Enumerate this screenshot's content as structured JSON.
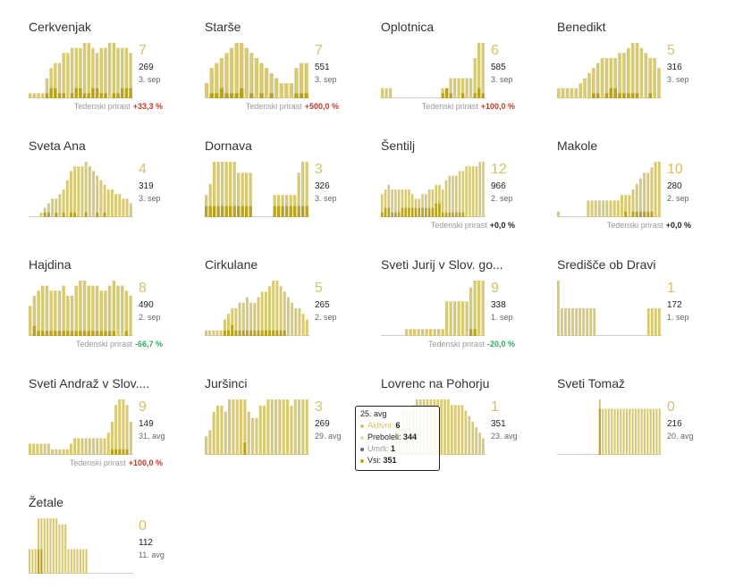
{
  "colors": {
    "active": "#d4c168",
    "base": "#d8ca74",
    "dark": "#b9a21f",
    "grey": "#cfcfcf",
    "positive_change": "#c0392b",
    "negative_change": "#27ae60"
  },
  "growth_label": "Tedenski prirast",
  "chart_data": [
    {
      "type": "bar",
      "title": "Cerkvenjak",
      "active": "7",
      "total": "269",
      "date": "3. sep",
      "growth": "+33,3 %",
      "growth_sign": "up",
      "values": [
        1,
        1,
        1,
        1,
        4,
        6,
        7,
        7,
        9,
        9,
        10,
        10,
        10,
        11,
        11,
        10,
        9,
        10,
        10,
        11,
        11,
        10,
        10,
        10,
        9
      ],
      "dark": [
        0,
        0,
        0,
        0,
        1,
        2,
        2,
        1,
        1,
        0,
        1,
        2,
        2,
        1,
        1,
        2,
        2,
        1,
        1,
        0,
        1,
        1,
        2,
        2,
        2
      ]
    },
    {
      "type": "bar",
      "title": "Starše",
      "active": "7",
      "total": "551",
      "date": "3. sep",
      "growth": "+500,0 %",
      "growth_sign": "up",
      "values": [
        3,
        6,
        7,
        8,
        9,
        10,
        11,
        11,
        10,
        9,
        8,
        7,
        6,
        5,
        4,
        3,
        3,
        3,
        6,
        7,
        7
      ],
      "dark": [
        0,
        1,
        1,
        2,
        1,
        1,
        1,
        2,
        0,
        1,
        0,
        1,
        0,
        1,
        0,
        0,
        0,
        0,
        1,
        1,
        1
      ]
    },
    {
      "type": "bar",
      "title": "Oplotnica",
      "active": "6",
      "total": "585",
      "date": "3. sep",
      "growth": "+100,0 %",
      "growth_sign": "up",
      "values": [
        2,
        2,
        2,
        0,
        0,
        0,
        0,
        0,
        0,
        0,
        0,
        0,
        0,
        0,
        0,
        2,
        2,
        4,
        4,
        4,
        4,
        4,
        4,
        8,
        11,
        11
      ],
      "dark": [
        0,
        0,
        0,
        0,
        0,
        0,
        0,
        0,
        0,
        0,
        0,
        0,
        0,
        0,
        0,
        1,
        2,
        1,
        0,
        0,
        1,
        0,
        0,
        1,
        2,
        1
      ]
    },
    {
      "type": "bar",
      "title": "Benedikt",
      "active": "5",
      "total": "316",
      "date": "3. sep",
      "growth": "",
      "growth_sign": "none",
      "values": [
        2,
        2,
        2,
        2,
        2,
        3,
        4,
        5,
        6,
        7,
        8,
        8,
        8,
        8,
        9,
        9,
        10,
        11,
        11,
        10,
        9,
        8,
        8,
        6
      ],
      "dark": [
        0,
        0,
        0,
        0,
        0,
        0,
        0,
        0,
        1,
        1,
        0,
        1,
        2,
        2,
        1,
        1,
        1,
        1,
        1,
        0,
        0,
        1,
        0,
        0
      ]
    },
    {
      "type": "bar",
      "title": "Sveta Ana",
      "active": "4",
      "total": "319",
      "date": "3. sep",
      "growth": "",
      "growth_sign": "none",
      "values": [
        0,
        0,
        0,
        1,
        2,
        3,
        4,
        4,
        5,
        6,
        8,
        10,
        11,
        11,
        11,
        12,
        11,
        10,
        9,
        8,
        7,
        6,
        6,
        5,
        5,
        4,
        4,
        3
      ],
      "dark": [
        0,
        0,
        0,
        0,
        1,
        1,
        0,
        1,
        0,
        1,
        0,
        1,
        1,
        0,
        0,
        1,
        0,
        0,
        1,
        0,
        1,
        0,
        0,
        0,
        0,
        0,
        0,
        0
      ]
    },
    {
      "type": "bar",
      "title": "Dornava",
      "active": "3",
      "total": "326",
      "date": "3. sep",
      "growth": "",
      "growth_sign": "none",
      "values": [
        4,
        6,
        10,
        10,
        10,
        10,
        10,
        10,
        8,
        8,
        8,
        8,
        0,
        0,
        0,
        0,
        0,
        4,
        4,
        4,
        4,
        4,
        4,
        8,
        10,
        10
      ],
      "dark": [
        2,
        2,
        2,
        2,
        2,
        2,
        2,
        2,
        2,
        2,
        2,
        2,
        0,
        0,
        0,
        0,
        0,
        2,
        2,
        2,
        2,
        2,
        2,
        2,
        2,
        2
      ]
    },
    {
      "type": "bar",
      "title": "Šentilj",
      "active": "12",
      "total": "966",
      "date": "2. sep",
      "growth": "+0,0 %",
      "growth_sign": "zero",
      "values": [
        5,
        6,
        7,
        6,
        6,
        6,
        6,
        6,
        6,
        5,
        4,
        4,
        5,
        5,
        6,
        6,
        7,
        7,
        6,
        8,
        9,
        9,
        9,
        10,
        10,
        11,
        11,
        11,
        11,
        12,
        12
      ],
      "dark": [
        1,
        2,
        2,
        1,
        1,
        1,
        2,
        2,
        2,
        2,
        2,
        2,
        2,
        2,
        2,
        2,
        3,
        3,
        1,
        1,
        1,
        1,
        1,
        1,
        1,
        0,
        0,
        0,
        0,
        0,
        0
      ]
    },
    {
      "type": "bar",
      "title": "Makole",
      "active": "10",
      "total": "280",
      "date": "2. sep",
      "growth": "+0,0 %",
      "growth_sign": "zero",
      "values": [
        1,
        0,
        0,
        0,
        0,
        0,
        0,
        0,
        3,
        3,
        3,
        3,
        3,
        3,
        3,
        3,
        3,
        4,
        4,
        4,
        5,
        6,
        7,
        8,
        8,
        9,
        10,
        10
      ],
      "dark": [
        0,
        0,
        0,
        0,
        0,
        0,
        0,
        0,
        0,
        0,
        0,
        0,
        0,
        0,
        0,
        0,
        0,
        0,
        1,
        0,
        1,
        1,
        1,
        1,
        1,
        1,
        0,
        0
      ]
    },
    {
      "type": "bar",
      "title": "Hajdina",
      "active": "8",
      "total": "490",
      "date": "2. sep",
      "growth": "-66,7 %",
      "growth_sign": "down",
      "values": [
        6,
        8,
        9,
        10,
        10,
        9,
        9,
        9,
        10,
        8,
        8,
        10,
        11,
        11,
        10,
        10,
        10,
        9,
        9,
        10,
        11,
        10,
        10,
        9,
        8
      ],
      "dark": [
        0,
        2,
        1,
        1,
        1,
        1,
        1,
        1,
        1,
        1,
        1,
        1,
        1,
        1,
        1,
        1,
        1,
        1,
        1,
        1,
        1,
        0,
        0,
        1,
        0
      ]
    },
    {
      "type": "bar",
      "title": "Cirkulane",
      "active": "5",
      "total": "265",
      "date": "2. sep",
      "growth": "",
      "growth_sign": "none",
      "values": [
        1,
        1,
        1,
        1,
        1,
        3,
        4,
        5,
        5,
        6,
        6,
        7,
        6,
        6,
        7,
        8,
        8,
        9,
        10,
        10,
        9,
        8,
        7,
        6,
        5,
        5,
        4,
        3
      ],
      "dark": [
        0,
        0,
        0,
        0,
        0,
        1,
        1,
        2,
        1,
        1,
        1,
        1,
        1,
        1,
        1,
        1,
        1,
        1,
        1,
        1,
        1,
        1,
        0,
        0,
        0,
        0,
        0,
        0
      ]
    },
    {
      "type": "bar",
      "title": "Sveti Jurij v Slov. go...",
      "active": "9",
      "total": "338",
      "date": "1. sep",
      "growth": "-20,0 %",
      "growth_sign": "down",
      "values": [
        0,
        0,
        0,
        0,
        0,
        0,
        1,
        1,
        1,
        1,
        1,
        1,
        1,
        1,
        1,
        1,
        5,
        5,
        5,
        5,
        5,
        5,
        7,
        8,
        8,
        8
      ],
      "dark": [
        0,
        0,
        0,
        0,
        0,
        0,
        0,
        0,
        0,
        0,
        0,
        0,
        0,
        0,
        0,
        0,
        0,
        0,
        0,
        0,
        0,
        0,
        1,
        1,
        0,
        0
      ]
    },
    {
      "type": "bar",
      "title": "Središče ob Dravi",
      "active": "1",
      "total": "172",
      "date": "1. sep",
      "growth": "",
      "growth_sign": "none",
      "values": [
        10,
        5,
        5,
        5,
        5,
        5,
        5,
        5,
        5,
        5,
        5,
        0,
        0,
        0,
        0,
        0,
        0,
        0,
        0,
        0,
        0,
        0,
        0,
        0,
        0,
        5,
        5,
        5,
        5
      ],
      "dark": [
        0,
        0,
        0,
        0,
        0,
        0,
        0,
        0,
        0,
        0,
        0,
        0,
        0,
        0,
        0,
        0,
        0,
        0,
        0,
        0,
        0,
        0,
        0,
        0,
        0,
        0,
        0,
        0,
        0
      ]
    },
    {
      "type": "bar",
      "title": "Sveti Andraž v Slov....",
      "active": "9",
      "total": "149",
      "date": "31. avg",
      "growth": "+100,0 %",
      "growth_sign": "up",
      "values": [
        2,
        2,
        2,
        2,
        2,
        2,
        1,
        1,
        1,
        1,
        1,
        2,
        3,
        3,
        3,
        3,
        3,
        3,
        3,
        3,
        3,
        4,
        6,
        9,
        10,
        10,
        9,
        6
      ],
      "dark": [
        0,
        0,
        0,
        0,
        0,
        0,
        0,
        0,
        0,
        0,
        0,
        0,
        0,
        0,
        0,
        0,
        0,
        0,
        0,
        0,
        0,
        0,
        1,
        1,
        1,
        1,
        1,
        0
      ]
    },
    {
      "type": "bar",
      "title": "Juršinci",
      "active": "3",
      "total": "269",
      "date": "29. avg",
      "growth": "",
      "growth_sign": "none",
      "values": [
        3,
        4,
        7,
        8,
        8,
        7,
        9,
        9,
        9,
        9,
        9,
        7,
        6,
        6,
        8,
        8,
        9,
        9,
        9,
        9,
        9,
        9,
        8,
        9,
        9,
        9,
        9
      ],
      "dark": [
        0,
        0,
        0,
        0,
        0,
        0,
        0,
        0,
        0,
        0,
        2,
        0,
        0,
        0,
        0,
        0,
        0,
        0,
        0,
        0,
        0,
        0,
        0,
        0,
        0,
        0,
        0
      ]
    },
    {
      "type": "bar",
      "title": "Lovrenc na Pohorju",
      "active": "1",
      "total": "351",
      "date": "23. avg",
      "growth": "",
      "growth_sign": "none",
      "values": [
        1,
        1,
        2,
        4,
        6,
        7,
        8,
        8,
        8,
        9,
        10,
        10,
        10,
        10,
        10,
        10,
        10,
        10,
        10,
        10,
        9,
        9,
        9,
        9,
        8,
        7,
        6,
        5,
        4,
        3
      ],
      "dark": [
        0,
        0,
        0,
        0,
        0,
        0,
        0,
        0,
        0,
        0,
        0,
        0,
        0,
        0,
        0,
        0,
        0,
        0,
        0,
        0,
        0,
        0,
        0,
        0,
        0,
        0,
        0,
        0,
        0,
        0
      ]
    },
    {
      "type": "bar",
      "title": "Sveti Tomaž",
      "active": "0",
      "total": "216",
      "date": "20. avg",
      "growth": "",
      "growth_sign": "none",
      "values": [
        0,
        0,
        0,
        0,
        0,
        0,
        0,
        0,
        0,
        0,
        0,
        0,
        0,
        0,
        12,
        10,
        10,
        10,
        10,
        10,
        10,
        10,
        10,
        10,
        10,
        10,
        10,
        10,
        10,
        10,
        10,
        10,
        10,
        10,
        10
      ],
      "dark": [
        0,
        0,
        0,
        0,
        0,
        0,
        0,
        0,
        0,
        0,
        0,
        0,
        0,
        0,
        10,
        0,
        0,
        0,
        0,
        0,
        0,
        0,
        0,
        0,
        0,
        0,
        0,
        0,
        0,
        0,
        0,
        0,
        0,
        0,
        0
      ]
    },
    {
      "type": "bar",
      "title": "Žetale",
      "active": "0",
      "total": "112",
      "date": "11. avg",
      "growth": "",
      "growth_sign": "none",
      "values": [
        4,
        4,
        4,
        9,
        9,
        9,
        9,
        9,
        9,
        9,
        8,
        8,
        8,
        4,
        4,
        4,
        4,
        4,
        4,
        4,
        0,
        0,
        0,
        0,
        0,
        0,
        0,
        0,
        0,
        0,
        0,
        0,
        0,
        0,
        0
      ],
      "dark": [
        0,
        0,
        0,
        4,
        4,
        0,
        0,
        0,
        0,
        0,
        0,
        0,
        0,
        0,
        0,
        0,
        0,
        0,
        0,
        0,
        0,
        0,
        0,
        0,
        0,
        0,
        0,
        0,
        0,
        0,
        0,
        0,
        0,
        0,
        0
      ]
    }
  ],
  "tooltip": {
    "date": "25. avg",
    "rows": [
      {
        "label": "Aktivni: ",
        "value": "6",
        "color": "#d4c168",
        "label_color": "#d4c168"
      },
      {
        "label": "Preboleli: ",
        "value": "344",
        "color": "#e3dcb0",
        "label_color": "#222"
      },
      {
        "label": "Umrli: ",
        "value": "1",
        "color": "#666666",
        "label_color": "#999"
      },
      {
        "label": "Vsi: ",
        "value": "351",
        "color": "#b9a21f",
        "label_color": "#222"
      }
    ]
  }
}
